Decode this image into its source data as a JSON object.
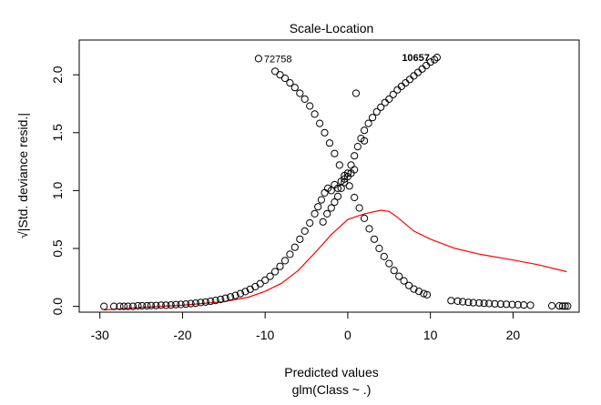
{
  "chart_data": {
    "type": "scatter",
    "title": "Scale-Location",
    "xlabel": "Predicted values",
    "sub_xlabel": "glm(Class ~ .)",
    "ylabel": "√|Std. deviance resid.|",
    "xlim": [
      -32.5,
      28
    ],
    "ylim": [
      -0.05,
      2.3
    ],
    "xticks": [
      -30,
      -20,
      -10,
      0,
      10,
      20
    ],
    "yticks": [
      0.0,
      0.5,
      1.0,
      1.5,
      2.0
    ],
    "xtick_labels": [
      "-30",
      "-20",
      "-10",
      "0",
      "10",
      "20"
    ],
    "ytick_labels": [
      "0.0",
      "0.5",
      "1.0",
      "1.5",
      "2.0"
    ],
    "grid": false,
    "point_style": "open-circle",
    "point_color": "#000000",
    "smooth_color": "#ff0000",
    "annotations": [
      {
        "label": "72758",
        "x": -10.8,
        "y": 2.14
      },
      {
        "label": "10657",
        "x": 10.8,
        "y": 2.15
      }
    ],
    "series": [
      {
        "values_kind": "points",
        "x": [
          -29.5,
          -28.3,
          -27.6,
          -27.1,
          -26.6,
          -26.0,
          -25.4,
          -24.9,
          -24.3,
          -23.8,
          -23.2,
          -22.6,
          -22.0,
          -21.4,
          -20.8,
          -20.2,
          -19.6,
          -19.0,
          -18.4,
          -17.8,
          -17.2,
          -16.6,
          -16.0,
          -15.4,
          -14.8,
          -14.2,
          -13.6,
          -13.0,
          -12.4,
          -11.8,
          -11.2,
          -10.6,
          -10.0,
          -9.4,
          -8.8,
          -8.2,
          -7.6,
          -7.0,
          -6.4,
          -5.8,
          -5.2,
          -4.6,
          -4.0,
          -3.6,
          -3.2,
          -2.8,
          -2.4,
          -2.0,
          -1.6,
          -1.2,
          -0.8,
          -0.4,
          0.0,
          0.4,
          0.8
        ],
        "y": [
          0.0,
          0.0,
          0.0,
          0.0,
          0.0,
          0.0,
          0.005,
          0.005,
          0.005,
          0.007,
          0.007,
          0.01,
          0.01,
          0.012,
          0.015,
          0.017,
          0.02,
          0.024,
          0.028,
          0.033,
          0.038,
          0.044,
          0.051,
          0.06,
          0.07,
          0.082,
          0.095,
          0.11,
          0.128,
          0.148,
          0.17,
          0.196,
          0.226,
          0.26,
          0.3,
          0.345,
          0.395,
          0.45,
          0.51,
          0.58,
          0.65,
          0.72,
          0.8,
          0.86,
          0.92,
          0.98,
          1.02,
          1.0,
          1.05,
          1.02,
          1.08,
          1.1,
          1.12,
          1.15,
          1.18
        ]
      },
      {
        "values_kind": "points",
        "x": [
          -10.8,
          -8.8,
          -8.2,
          -7.6,
          -7.0,
          -6.4,
          -5.8,
          -5.2,
          -4.6,
          -4.0,
          -3.4,
          -2.8,
          -2.2,
          -1.6,
          -1.0,
          -0.4,
          0.2,
          0.8,
          1.4,
          2.0,
          2.6,
          3.2,
          3.8,
          4.4,
          5.0,
          5.6,
          6.2,
          6.8,
          7.4,
          8.0,
          8.6,
          9.2,
          9.6
        ],
        "y": [
          2.14,
          2.03,
          2.0,
          1.97,
          1.93,
          1.89,
          1.84,
          1.79,
          1.73,
          1.66,
          1.58,
          1.5,
          1.41,
          1.32,
          1.22,
          1.13,
          1.04,
          0.94,
          0.85,
          0.76,
          0.67,
          0.58,
          0.5,
          0.43,
          0.37,
          0.31,
          0.26,
          0.22,
          0.18,
          0.15,
          0.13,
          0.11,
          0.1
        ]
      },
      {
        "values_kind": "points",
        "x": [
          -3.0,
          -2.5,
          -2.0,
          -1.6,
          -1.2,
          -0.8,
          -0.4,
          0.0,
          0.4,
          0.8,
          1.2,
          1.6,
          2.0,
          2.5,
          3.0,
          3.5,
          4.0,
          4.5,
          5.0,
          5.5,
          6.0,
          6.5,
          7.0,
          7.5,
          8.0,
          8.5,
          9.0,
          9.5,
          10.0,
          10.5,
          10.8,
          1.0,
          2.0
        ],
        "y": [
          0.73,
          0.8,
          0.85,
          0.9,
          0.95,
          1.02,
          1.07,
          1.15,
          1.22,
          1.3,
          1.38,
          1.45,
          1.52,
          1.58,
          1.63,
          1.68,
          1.72,
          1.76,
          1.79,
          1.83,
          1.87,
          1.9,
          1.93,
          1.96,
          1.99,
          2.02,
          2.05,
          2.08,
          2.11,
          2.13,
          2.15,
          1.84,
          1.43
        ]
      },
      {
        "values_kind": "points",
        "x": [
          12.5,
          13.3,
          13.9,
          14.6,
          15.2,
          15.9,
          16.5,
          17.1,
          17.8,
          18.5,
          19.2,
          19.9,
          20.6,
          21.3,
          22.1,
          24.7,
          25.6,
          26.0,
          26.3,
          26.6
        ],
        "y": [
          0.05,
          0.045,
          0.04,
          0.035,
          0.032,
          0.03,
          0.027,
          0.025,
          0.022,
          0.02,
          0.018,
          0.016,
          0.014,
          0.012,
          0.01,
          0.005,
          0.004,
          0.003,
          0.003,
          0.002
        ]
      },
      {
        "values_kind": "smooth",
        "x": [
          -29.5,
          -25.0,
          -20.0,
          -15.0,
          -12.0,
          -10.0,
          -8.0,
          -6.0,
          -4.0,
          -2.0,
          0.0,
          2.0,
          4.0,
          5.0,
          6.0,
          7.0,
          8.0,
          10.0,
          13.0,
          16.0,
          20.0,
          23.0,
          26.5
        ],
        "y": [
          -0.03,
          -0.01,
          0.01,
          0.04,
          0.08,
          0.13,
          0.2,
          0.31,
          0.46,
          0.62,
          0.75,
          0.8,
          0.83,
          0.82,
          0.77,
          0.71,
          0.65,
          0.58,
          0.5,
          0.45,
          0.4,
          0.36,
          0.3
        ]
      }
    ]
  }
}
